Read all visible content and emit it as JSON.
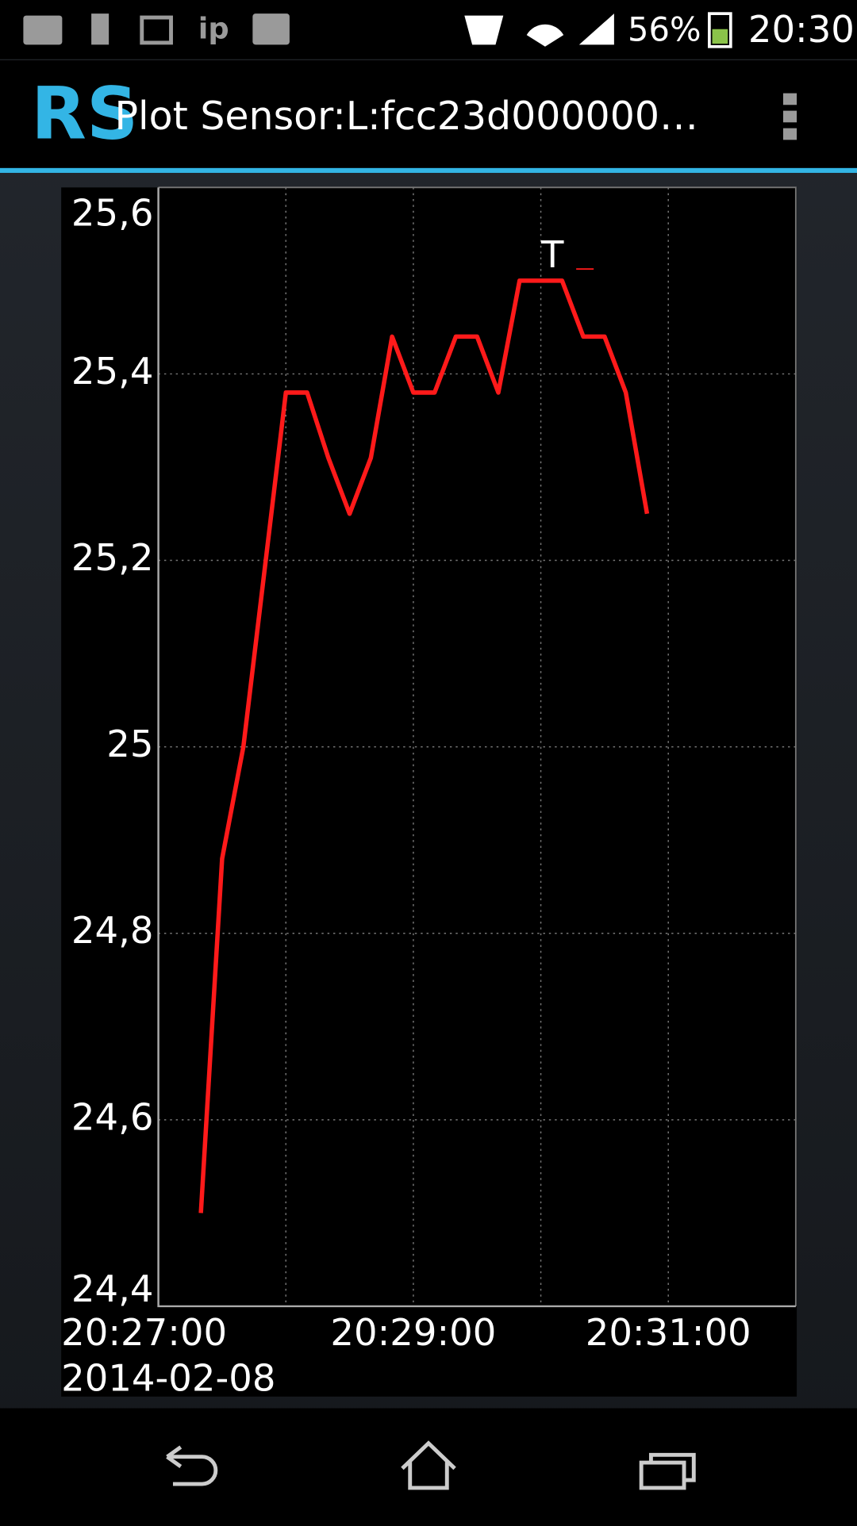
{
  "status_bar": {
    "ip_icon": "ip",
    "battery": "56%",
    "time": "20:30"
  },
  "app_bar": {
    "title": "Plot Sensor:L:fcc23d000000…"
  },
  "chart_data": {
    "type": "line",
    "x": [
      "20:27:20",
      "20:27:30",
      "20:27:40",
      "20:27:50",
      "20:28:00",
      "20:28:10",
      "20:28:20",
      "20:28:30",
      "20:28:40",
      "20:28:50",
      "20:29:00",
      "20:29:10",
      "20:29:20",
      "20:29:30",
      "20:29:40",
      "20:29:50",
      "20:30:00",
      "20:30:10",
      "20:30:20",
      "20:30:30",
      "20:30:40",
      "20:30:50"
    ],
    "series": [
      {
        "name": "T",
        "color": "#ff1a1a",
        "values": [
          24.5,
          24.88,
          25.0,
          25.19,
          25.38,
          25.38,
          25.31,
          25.25,
          25.31,
          25.44,
          25.38,
          25.38,
          25.44,
          25.44,
          25.38,
          25.5,
          25.5,
          25.5,
          25.44,
          25.44,
          25.38,
          25.25
        ]
      }
    ],
    "xlim": [
      "20:27:00",
      "20:32:00"
    ],
    "xticks": [
      "20:27:00",
      "20:29:00",
      "20:31:00"
    ],
    "xgrid": [
      "20:28:00",
      "20:29:00",
      "20:30:00",
      "20:31:00"
    ],
    "x_date": "2014-02-08",
    "ylim": [
      24.4,
      25.6
    ],
    "yticks": [
      {
        "value": 24.4,
        "label": "24,4"
      },
      {
        "value": 24.6,
        "label": "24,6"
      },
      {
        "value": 24.8,
        "label": "24,8"
      },
      25,
      {
        "value": 25.2,
        "label": "25,2"
      },
      {
        "value": 25.4,
        "label": "25,4"
      },
      {
        "value": 25.6,
        "label": "25,6"
      }
    ],
    "grid": true
  }
}
